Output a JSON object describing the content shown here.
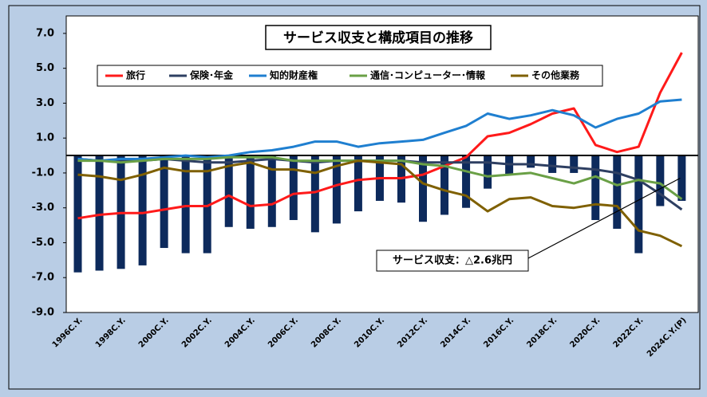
{
  "chart_data": {
    "type": "bar_line",
    "title": "サービス収支と構成項目の推移",
    "categories": [
      "1996C.Y.",
      null,
      "1998C.Y.",
      null,
      "2000C.Y.",
      null,
      "2002C.Y.",
      null,
      "2004C.Y.",
      null,
      "2006C.Y.",
      null,
      "2008C.Y.",
      null,
      "2010C.Y.",
      null,
      "2012C.Y.",
      null,
      "2014C.Y.",
      null,
      "2016C.Y.",
      null,
      "2018C.Y.",
      null,
      "2020C.Y.",
      null,
      "2022C.Y.",
      null,
      "2024C.Y.(P)"
    ],
    "bars": {
      "color": "#0d2a5c",
      "values": [
        -6.7,
        -6.6,
        -6.5,
        -6.3,
        -5.3,
        -5.6,
        -5.6,
        -4.1,
        -4.2,
        -4.1,
        -3.7,
        -4.4,
        -3.9,
        -3.2,
        -2.6,
        -2.7,
        -3.8,
        -3.4,
        -3.0,
        -1.9,
        -1.1,
        -0.7,
        -1.0,
        -1.0,
        -3.7,
        -4.2,
        -5.6,
        -2.9,
        -2.6
      ]
    },
    "series": [
      {
        "name": "旅行",
        "color": "#ff1a1a",
        "values": [
          -3.6,
          -3.4,
          -3.3,
          -3.3,
          -3.1,
          -2.9,
          -2.9,
          -2.3,
          -2.9,
          -2.8,
          -2.2,
          -2.1,
          -1.7,
          -1.4,
          -1.3,
          -1.3,
          -1.1,
          -0.6,
          -0.1,
          1.1,
          1.3,
          1.8,
          2.4,
          2.7,
          0.6,
          0.2,
          0.5,
          3.6,
          5.9
        ]
      },
      {
        "name": "保険･年金",
        "color": "#2e3f62",
        "values": [
          -0.2,
          -0.3,
          -0.3,
          -0.3,
          -0.2,
          -0.3,
          -0.4,
          -0.4,
          -0.3,
          -0.2,
          -0.3,
          -0.4,
          -0.3,
          -0.3,
          -0.3,
          -0.3,
          -0.4,
          -0.4,
          -0.4,
          -0.4,
          -0.5,
          -0.5,
          -0.6,
          -0.7,
          -0.8,
          -1.0,
          -1.4,
          -2.2,
          -3.1
        ]
      },
      {
        "name": "知的財産権",
        "color": "#1f7fd0",
        "values": [
          -0.2,
          -0.3,
          -0.2,
          -0.2,
          -0.1,
          0.0,
          -0.1,
          0.0,
          0.2,
          0.3,
          0.5,
          0.8,
          0.8,
          0.5,
          0.7,
          0.8,
          0.9,
          1.3,
          1.7,
          2.4,
          2.1,
          2.3,
          2.6,
          2.3,
          1.6,
          2.1,
          2.4,
          3.1,
          3.2
        ]
      },
      {
        "name": "通信･コンピューター･情報",
        "color": "#6aa046",
        "values": [
          -0.3,
          -0.3,
          -0.4,
          -0.3,
          -0.2,
          -0.2,
          -0.2,
          -0.1,
          -0.1,
          -0.1,
          -0.3,
          -0.3,
          -0.3,
          -0.3,
          -0.3,
          -0.3,
          -0.5,
          -0.6,
          -0.9,
          -1.2,
          -1.1,
          -1.0,
          -1.3,
          -1.6,
          -1.2,
          -1.7,
          -1.4,
          -1.6,
          -2.5
        ]
      },
      {
        "name": "その他業務",
        "color": "#7f6000",
        "values": [
          -1.1,
          -1.2,
          -1.4,
          -1.1,
          -0.7,
          -0.9,
          -0.9,
          -0.6,
          -0.4,
          -0.8,
          -0.8,
          -1.0,
          -0.6,
          -0.3,
          -0.4,
          -0.5,
          -1.6,
          -2.0,
          -2.3,
          -3.2,
          -2.5,
          -2.4,
          -2.9,
          -3.0,
          -2.8,
          -2.9,
          -4.3,
          -4.6,
          -5.2
        ]
      }
    ],
    "annotation": "サービス収支：△2.6兆円",
    "ylim": [
      -9,
      8
    ],
    "yticks": [
      {
        "value": 7,
        "label": "7.0"
      },
      {
        "value": 5,
        "label": "5.0"
      },
      {
        "value": 3,
        "label": "3.0"
      },
      {
        "value": 1,
        "label": "1.0"
      },
      {
        "value": -1,
        "label": "-1.0"
      },
      {
        "value": -3,
        "label": "-3.0"
      },
      {
        "value": -5,
        "label": "-5.0"
      },
      {
        "value": -7,
        "label": "-7.0"
      },
      {
        "value": -9,
        "label": "-9.0"
      }
    ],
    "grid": false
  }
}
